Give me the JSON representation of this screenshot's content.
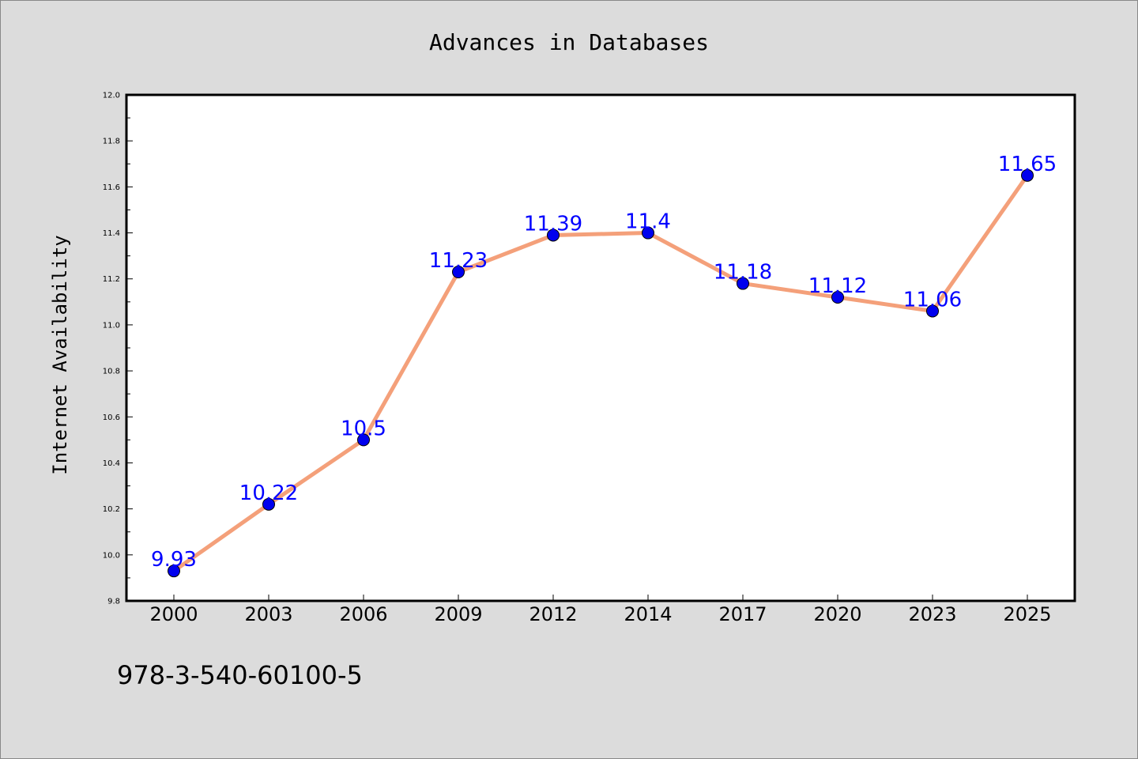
{
  "chart_data": {
    "type": "line",
    "title": "Advances in Databases",
    "xlabel": "",
    "ylabel": "Internet Availability",
    "categories": [
      "2000",
      "2003",
      "2006",
      "2009",
      "2012",
      "2014",
      "2017",
      "2020",
      "2023",
      "2025"
    ],
    "series": [
      {
        "values": [
          9.93,
          10.22,
          10.5,
          11.23,
          11.39,
          11.4,
          11.18,
          11.12,
          11.06,
          11.65
        ],
        "labels": [
          "9.93",
          "10.22",
          "10.5",
          "11.23",
          "11.39",
          "11.4",
          "11.18",
          "11.12",
          "11.06",
          "11.65"
        ]
      }
    ],
    "ylim": [
      9.8,
      12.0
    ],
    "yticks": [
      "9.8",
      "10.0",
      "10.2",
      "10.4",
      "10.6",
      "10.8",
      "11.0",
      "11.2",
      "11.4",
      "11.6",
      "11.8",
      "12.0"
    ],
    "grid": false,
    "legend": "none",
    "colors": {
      "line": "#f4a07a",
      "marker": "#0000ee",
      "data_label": "#0000ff",
      "background": "#dcdcdc",
      "plot_background": "#ffffff"
    }
  },
  "footer": {
    "isbn": "978-3-540-60100-5"
  }
}
